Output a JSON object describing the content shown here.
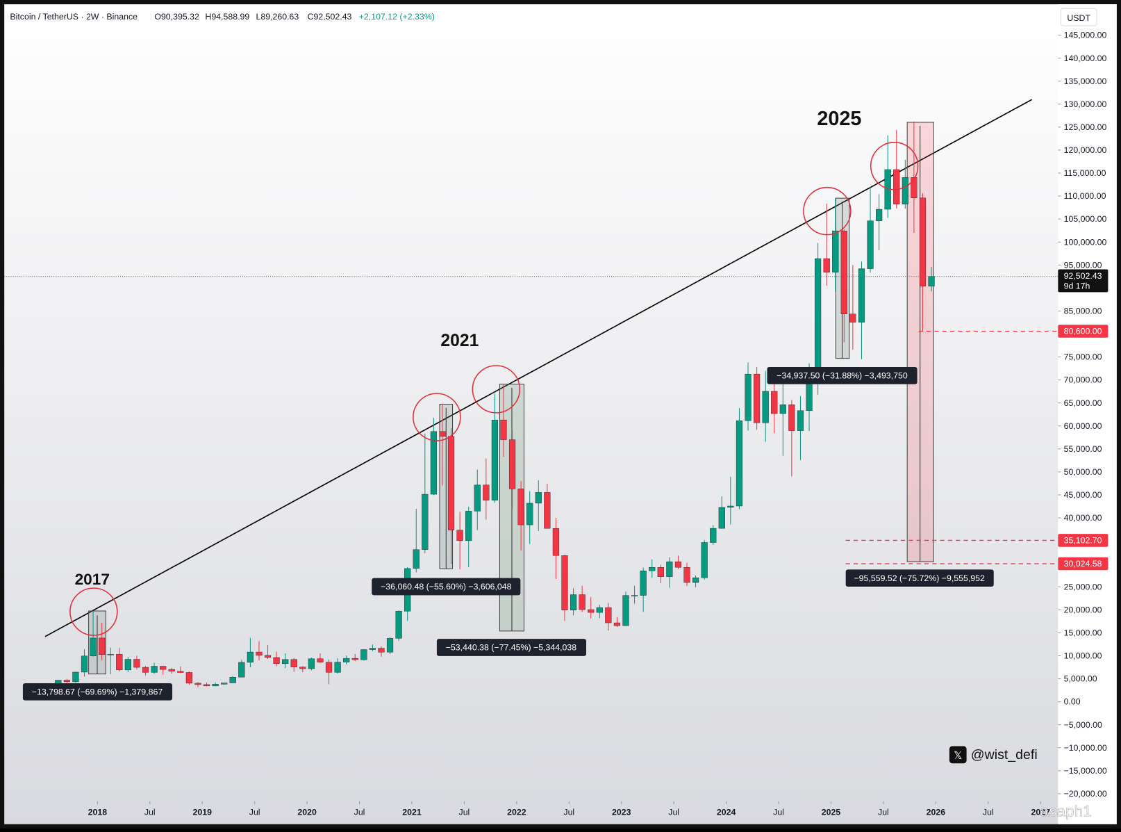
{
  "header": {
    "symbol": "Bitcoin / TetherUS · 2W · Binance",
    "values": [
      "O90,395.32",
      "H94,588.99",
      "L89,260.63",
      "C92,502.43",
      "+2,107.12 (+2.33%)"
    ]
  },
  "chart_data": {
    "type": "candlestick",
    "currency": "USDT",
    "colors": {
      "up": "#089981",
      "down": "#f23645"
    },
    "xlim": [
      "2017-02",
      "2027-03"
    ],
    "ylim": [
      -21650,
      151400
    ],
    "xticks": [
      {
        "value": "2018-01",
        "label": "2018"
      },
      {
        "value": "2018-07",
        "label": "Jul"
      },
      {
        "value": "2019-01",
        "label": "2019"
      },
      {
        "value": "2019-07",
        "label": "Jul"
      },
      {
        "value": "2020-01",
        "label": "2020"
      },
      {
        "value": "2020-07",
        "label": "Jul"
      },
      {
        "value": "2021-01",
        "label": "2021"
      },
      {
        "value": "2021-07",
        "label": "Jul"
      },
      {
        "value": "2022-01",
        "label": "2022"
      },
      {
        "value": "2022-07",
        "label": "Jul"
      },
      {
        "value": "2023-01",
        "label": "2023"
      },
      {
        "value": "2023-07",
        "label": "Jul"
      },
      {
        "value": "2024-01",
        "label": "2024"
      },
      {
        "value": "2024-07",
        "label": "Jul"
      },
      {
        "value": "2025-01",
        "label": "2025"
      },
      {
        "value": "2025-07",
        "label": "Jul"
      },
      {
        "value": "2026-01",
        "label": "2026"
      },
      {
        "value": "2026-07",
        "label": "Jul"
      },
      {
        "value": "2027-01",
        "label": "2027"
      }
    ],
    "yticks": [
      {
        "value": 145000,
        "label": "145,000.00"
      },
      {
        "value": 140000,
        "label": "140,000.00"
      },
      {
        "value": 135000,
        "label": "135,000.00"
      },
      {
        "value": 130000,
        "label": "130,000.00"
      },
      {
        "value": 125000,
        "label": "125,000.00"
      },
      {
        "value": 120000,
        "label": "120,000.00"
      },
      {
        "value": 115000,
        "label": "115,000.00"
      },
      {
        "value": 110000,
        "label": "110,000.00"
      },
      {
        "value": 105000,
        "label": "105,000.00"
      },
      {
        "value": 100000,
        "label": "100,000.00"
      },
      {
        "value": 95000,
        "label": "95,000.00"
      },
      {
        "value": 85000,
        "label": "85,000.00"
      },
      {
        "value": 75000,
        "label": "75,000.00"
      },
      {
        "value": 70000,
        "label": "70,000.00"
      },
      {
        "value": 65000,
        "label": "65,000.00"
      },
      {
        "value": 60000,
        "label": "60,000.00"
      },
      {
        "value": 55000,
        "label": "55,000.00"
      },
      {
        "value": 50000,
        "label": "50,000.00"
      },
      {
        "value": 45000,
        "label": "45,000.00"
      },
      {
        "value": 40000,
        "label": "40,000.00"
      },
      {
        "value": 25000,
        "label": "25,000.00"
      },
      {
        "value": 20000,
        "label": "20,000.00"
      },
      {
        "value": 15000,
        "label": "15,000.00"
      },
      {
        "value": 10000,
        "label": "10,000.00"
      },
      {
        "value": 5000,
        "label": "5,000.00"
      },
      {
        "value": 0,
        "label": "0.00"
      },
      {
        "value": -5000,
        "label": "−5,000.00"
      },
      {
        "value": -10000,
        "label": "−10,000.00"
      },
      {
        "value": -15000,
        "label": "−15,000.00"
      },
      {
        "value": -20000,
        "label": "−20,000.00"
      }
    ],
    "x": [
      "2017-08",
      "2017-09",
      "2017-10",
      "2017-11",
      "2017-12",
      "2018-01",
      "2018-02",
      "2018-03",
      "2018-04",
      "2018-05",
      "2018-06",
      "2018-07",
      "2018-08",
      "2018-09",
      "2018-10",
      "2018-11",
      "2018-12",
      "2019-01",
      "2019-02",
      "2019-03",
      "2019-04",
      "2019-05",
      "2019-06",
      "2019-07",
      "2019-08",
      "2019-09",
      "2019-10",
      "2019-11",
      "2019-12",
      "2020-01",
      "2020-02",
      "2020-03",
      "2020-04",
      "2020-05",
      "2020-06",
      "2020-07",
      "2020-08",
      "2020-09",
      "2020-10",
      "2020-11",
      "2020-12",
      "2021-01",
      "2021-02",
      "2021-03",
      "2021-04",
      "2021-05",
      "2021-06",
      "2021-07",
      "2021-08",
      "2021-09",
      "2021-10",
      "2021-11",
      "2021-12",
      "2022-01",
      "2022-02",
      "2022-03",
      "2022-04",
      "2022-05",
      "2022-06",
      "2022-07",
      "2022-08",
      "2022-09",
      "2022-10",
      "2022-11",
      "2022-12",
      "2023-01",
      "2023-02",
      "2023-03",
      "2023-04",
      "2023-05",
      "2023-06",
      "2023-07",
      "2023-08",
      "2023-09",
      "2023-10",
      "2023-11",
      "2023-12",
      "2024-01",
      "2024-02",
      "2024-03",
      "2024-04",
      "2024-05",
      "2024-06",
      "2024-07",
      "2024-08",
      "2024-09",
      "2024-10",
      "2024-11",
      "2024-12",
      "2025-01",
      "2025-02",
      "2025-03",
      "2025-04",
      "2025-05",
      "2025-06",
      "2025-07",
      "2025-08",
      "2025-09",
      "2025-10",
      "2025-11",
      "2025-12"
    ],
    "candles": [
      [
        2870,
        4750,
        2700,
        4700
      ],
      [
        4700,
        4980,
        2980,
        4340
      ],
      [
        4340,
        6470,
        4110,
        6450
      ],
      [
        6450,
        11400,
        5500,
        9950
      ],
      [
        9950,
        19800,
        9800,
        13860
      ],
      [
        13860,
        17200,
        9030,
        10260
      ],
      [
        10260,
        11780,
        6000,
        10330
      ],
      [
        10330,
        11700,
        6600,
        6920
      ],
      [
        6920,
        9770,
        6430,
        9240
      ],
      [
        9240,
        10000,
        7030,
        7490
      ],
      [
        7490,
        7760,
        5760,
        6390
      ],
      [
        6390,
        8500,
        6070,
        7730
      ],
      [
        7730,
        7760,
        5880,
        7030
      ],
      [
        7030,
        7410,
        6100,
        6630
      ],
      [
        6630,
        7680,
        6200,
        6370
      ],
      [
        6370,
        6580,
        3650,
        4040
      ],
      [
        4040,
        4240,
        3120,
        3740
      ],
      [
        3740,
        4140,
        3350,
        3440
      ],
      [
        3440,
        4200,
        3380,
        3820
      ],
      [
        3820,
        4100,
        3730,
        4100
      ],
      [
        4100,
        5600,
        4090,
        5350
      ],
      [
        5350,
        9080,
        5330,
        8570
      ],
      [
        8570,
        13900,
        7500,
        10820
      ],
      [
        10820,
        13180,
        9010,
        10090
      ],
      [
        10090,
        12330,
        9320,
        9630
      ],
      [
        9630,
        10910,
        7710,
        8290
      ],
      [
        8290,
        10540,
        7300,
        9200
      ],
      [
        9200,
        9510,
        6510,
        7550
      ],
      [
        7550,
        7740,
        6430,
        7190
      ],
      [
        7190,
        9580,
        6850,
        9350
      ],
      [
        9350,
        10500,
        8450,
        8600
      ],
      [
        8600,
        9200,
        3800,
        6410
      ],
      [
        6410,
        9470,
        6150,
        8620
      ],
      [
        8620,
        10070,
        8100,
        9450
      ],
      [
        9450,
        10380,
        8830,
        9140
      ],
      [
        9140,
        11450,
        8970,
        11350
      ],
      [
        11350,
        12470,
        10990,
        11650
      ],
      [
        11650,
        12050,
        9820,
        10780
      ],
      [
        10780,
        14100,
        10370,
        13800
      ],
      [
        13800,
        19860,
        13200,
        19700
      ],
      [
        19700,
        29300,
        17570,
        28990
      ],
      [
        28990,
        41950,
        28130,
        33110
      ],
      [
        33110,
        58350,
        32300,
        45140
      ],
      [
        45140,
        61780,
        44960,
        58790
      ],
      [
        58790,
        64850,
        47050,
        57720
      ],
      [
        57720,
        59500,
        30000,
        37330
      ],
      [
        37330,
        41330,
        28800,
        35040
      ],
      [
        35040,
        42450,
        29280,
        41460
      ],
      [
        41460,
        50500,
        37330,
        47150
      ],
      [
        47150,
        52920,
        39600,
        43830
      ],
      [
        43830,
        67000,
        43280,
        61300
      ],
      [
        61300,
        69000,
        53260,
        57000
      ],
      [
        57000,
        59050,
        42000,
        46300
      ],
      [
        46300,
        47990,
        32900,
        38480
      ],
      [
        38480,
        45820,
        34320,
        43190
      ],
      [
        43190,
        48190,
        37150,
        45540
      ],
      [
        45540,
        47440,
        37700,
        37710
      ],
      [
        37710,
        40020,
        26700,
        31800
      ],
      [
        31800,
        31980,
        17570,
        19940
      ],
      [
        19940,
        24670,
        18780,
        23300
      ],
      [
        23300,
        25210,
        19520,
        20050
      ],
      [
        20050,
        22800,
        18130,
        19430
      ],
      [
        19430,
        21100,
        18190,
        20490
      ],
      [
        20490,
        21480,
        15480,
        17170
      ],
      [
        17170,
        18400,
        16250,
        16550
      ],
      [
        16550,
        23960,
        16500,
        23130
      ],
      [
        23130,
        25250,
        21350,
        23140
      ],
      [
        23140,
        29190,
        19550,
        28480
      ],
      [
        28480,
        31000,
        26940,
        29230
      ],
      [
        29230,
        29820,
        25810,
        27210
      ],
      [
        27210,
        31430,
        24800,
        30470
      ],
      [
        30470,
        31800,
        28860,
        29230
      ],
      [
        29230,
        30230,
        25170,
        25940
      ],
      [
        25940,
        27480,
        24900,
        26960
      ],
      [
        26960,
        35200,
        26540,
        34640
      ],
      [
        34640,
        38420,
        34100,
        37720
      ],
      [
        37720,
        44700,
        37620,
        42280
      ],
      [
        42280,
        48970,
        38550,
        42580
      ],
      [
        42580,
        63900,
        41880,
        61130
      ],
      [
        61130,
        73800,
        59000,
        71280
      ],
      [
        71280,
        72800,
        59150,
        60670
      ],
      [
        60670,
        71980,
        56550,
        67530
      ],
      [
        67530,
        71980,
        58400,
        62680
      ],
      [
        62680,
        70000,
        53500,
        64620
      ],
      [
        64620,
        65600,
        49000,
        58970
      ],
      [
        58970,
        66500,
        52550,
        63330
      ],
      [
        63330,
        73620,
        58900,
        70220
      ],
      [
        70220,
        99800,
        66800,
        96400
      ],
      [
        96400,
        108350,
        90500,
        93430
      ],
      [
        93430,
        109600,
        89200,
        102430
      ],
      [
        102430,
        102750,
        78200,
        84350
      ],
      [
        84350,
        95000,
        76600,
        82550
      ],
      [
        82550,
        95750,
        74500,
        94200
      ],
      [
        94200,
        111980,
        93350,
        104600
      ],
      [
        104600,
        110400,
        98200,
        107130
      ],
      [
        107130,
        123200,
        105300,
        115760
      ],
      [
        115760,
        124400,
        107300,
        108230
      ],
      [
        108230,
        117900,
        107250,
        114050
      ],
      [
        114050,
        126200,
        102000,
        109600
      ],
      [
        109600,
        110600,
        80600,
        90390
      ],
      [
        90395.32,
        94588.99,
        89260.63,
        92502.43
      ]
    ],
    "trendline": {
      "x": [
        "2017-07",
        "2026-12"
      ],
      "y": [
        14180,
        130990
      ]
    },
    "last_price": {
      "value": 92502.43,
      "label": "92,502.43",
      "countdown": "9d 17h"
    },
    "price_lines": [
      {
        "value": 80600,
        "label": "80,600.00"
      },
      {
        "value": 35102.7,
        "label": "35,102.70"
      },
      {
        "value": 30024.58,
        "label": "30,024.58"
      }
    ],
    "annotations": {
      "years": [
        "2017",
        "2021",
        "2025"
      ],
      "measures": [
        "−13,798.67 (−69.69%) −1,379,867",
        "−36,060.48 (−55.60%) −3,606,048",
        "−53,440.38 (−77.45%) −5,344,038",
        "−34,937.50 (−31.88%) −3,493,750",
        "−95,559.52 (−75.72%) −9,555,952"
      ]
    }
  },
  "watermarks": [
    "@wist_defi",
    "asaph1"
  ]
}
